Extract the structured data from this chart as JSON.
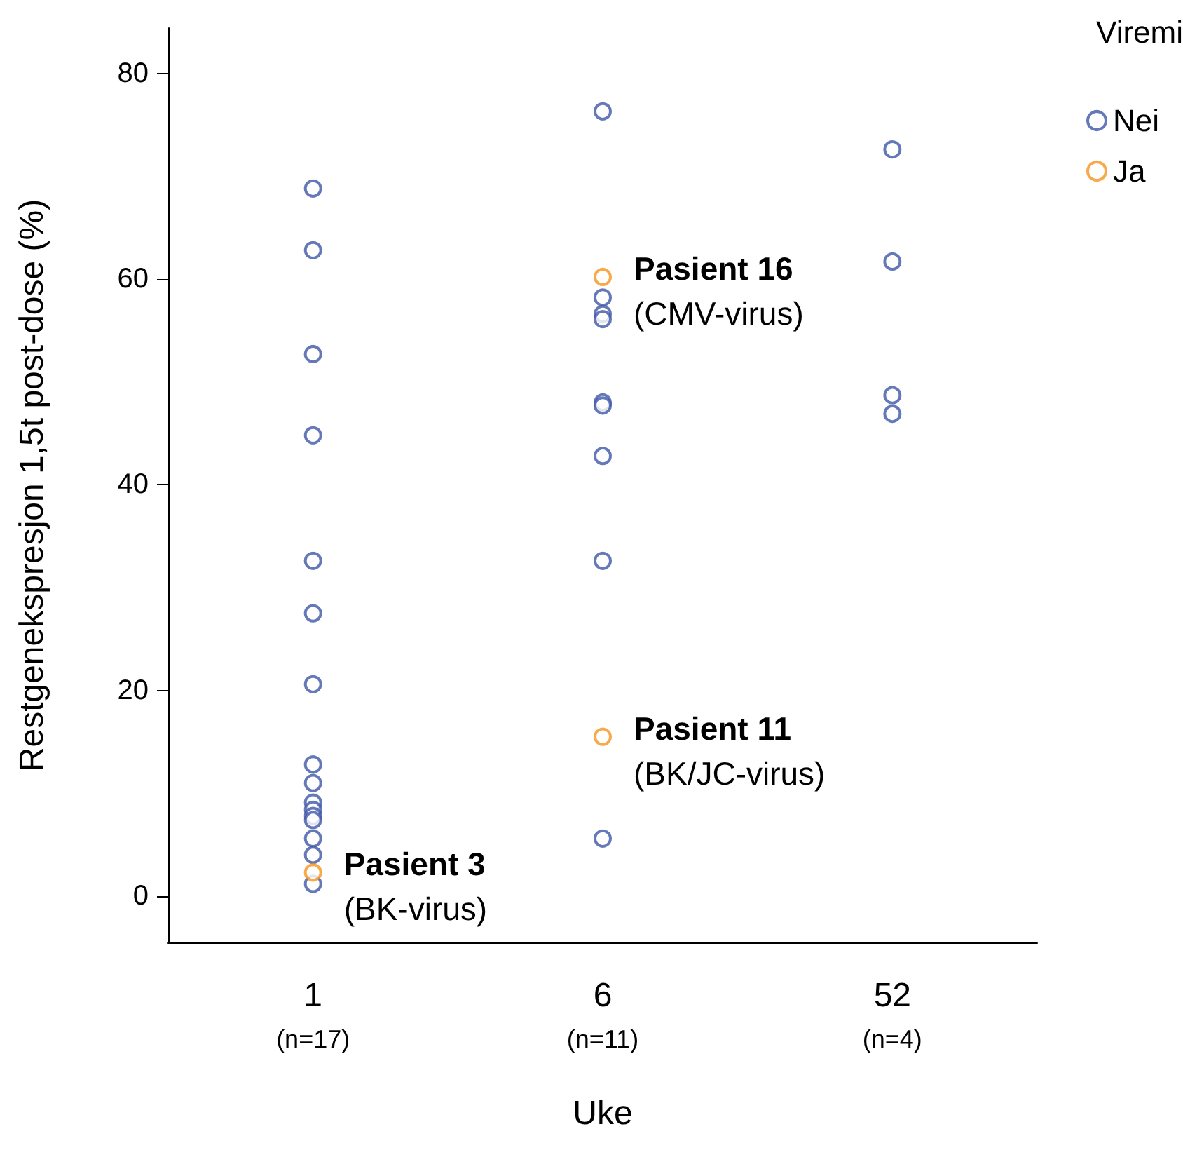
{
  "chart_data": {
    "type": "scatter",
    "categories": [
      "1\n(n=17)",
      "6\n(n=11)",
      "52\n(n=4)"
    ],
    "xlabel": "Uke",
    "ylabel": "Restgenekspresjon 1,5t post-dose (%)",
    "legend_title": "Viremi",
    "legend": "top right",
    "grid": false,
    "marker": "circle",
    "ylim": [
      -4.5,
      84.4
    ],
    "yticks": [
      0,
      20,
      40,
      60,
      80
    ],
    "series": [
      {
        "name": "Nei",
        "color": "#3f57a8",
        "x": [
          "1\n(n=17)",
          "1\n(n=17)",
          "1\n(n=17)",
          "1\n(n=17)",
          "1\n(n=17)",
          "1\n(n=17)",
          "1\n(n=17)",
          "1\n(n=17)",
          "1\n(n=17)",
          "1\n(n=17)",
          "1\n(n=17)",
          "1\n(n=17)",
          "1\n(n=17)",
          "1\n(n=17)",
          "1\n(n=17)",
          "1\n(n=17)",
          "6\n(n=11)",
          "6\n(n=11)",
          "6\n(n=11)",
          "6\n(n=11)",
          "6\n(n=11)",
          "6\n(n=11)",
          "6\n(n=11)",
          "6\n(n=11)",
          "6\n(n=11)",
          "52\n(n=4)",
          "52\n(n=4)",
          "52\n(n=4)",
          "52\n(n=4)"
        ],
        "values": [
          68.8,
          62.8,
          52.7,
          44.8,
          32.6,
          27.5,
          20.6,
          12.8,
          11.0,
          9.1,
          8.4,
          7.8,
          7.4,
          5.6,
          4.0,
          1.2,
          76.3,
          58.2,
          56.6,
          56.1,
          48.0,
          47.7,
          42.8,
          32.6,
          5.6,
          72.6,
          61.7,
          48.7,
          46.9
        ]
      },
      {
        "name": "Ja",
        "color": "#f7941d",
        "x": [
          "1\n(n=17)",
          "6\n(n=11)",
          "6\n(n=11)"
        ],
        "values": [
          2.3,
          60.2,
          15.5
        ]
      }
    ],
    "annotations": [
      {
        "text": "Pasient 3\n(BK-virus)",
        "x": "1\n(n=17)",
        "y": 2.3
      },
      {
        "text": "Pasient 16\n(CMV-virus)",
        "x": "6\n(n=11)",
        "y": 60.2
      },
      {
        "text": "Pasient 11\n(BK/JC-virus)",
        "x": "6\n(n=11)",
        "y": 15.5
      }
    ]
  }
}
